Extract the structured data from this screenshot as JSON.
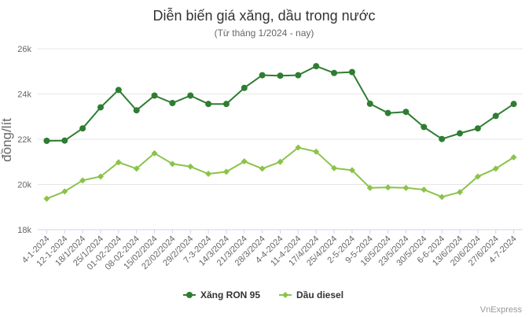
{
  "chart_data": {
    "type": "line",
    "title": "Diễn biến giá xăng, dầu trong nước",
    "subtitle": "(Từ tháng 1/2024 - nay)",
    "ylabel": "đồng/lít",
    "xlabel": "",
    "ylim": [
      18000,
      26000
    ],
    "yticks": [
      {
        "value": 18000,
        "label": "18k"
      },
      {
        "value": 20000,
        "label": "20k"
      },
      {
        "value": 22000,
        "label": "22k"
      },
      {
        "value": 24000,
        "label": "24k"
      },
      {
        "value": 26000,
        "label": "26k"
      }
    ],
    "categories": [
      "4-1-2024",
      "12-1-2024",
      "18/1/2024",
      "25/1/2024",
      "01-02-2024",
      "08-02-2024",
      "15/02/2024",
      "22/02/2024",
      "29/2/2024",
      "7-3-2024",
      "14/3/2024",
      "21/3/2024",
      "28/3/2024",
      "4-4-2024",
      "11-4-2024",
      "17/4/2024",
      "25/4/2024",
      "2-5-2024",
      "9-5-2024",
      "16/5/2024",
      "23/5/2024",
      "30/5/2024",
      "6-6-2024",
      "13/6/2024",
      "20/6/2024",
      "27/6/2024",
      "4-7-2024"
    ],
    "series": [
      {
        "name": "Xăng RON 95",
        "color": "#2e7d32",
        "marker": "circle",
        "values": [
          21930,
          21940,
          22480,
          23410,
          24180,
          23280,
          23930,
          23600,
          23930,
          23560,
          23560,
          24270,
          24830,
          24810,
          24830,
          25230,
          24930,
          24970,
          23570,
          23160,
          23210,
          22540,
          22010,
          22260,
          22480,
          23030,
          23560
        ]
      },
      {
        "name": "Dầu diesel",
        "color": "#8bc34a",
        "marker": "diamond",
        "values": [
          19370,
          19690,
          20180,
          20350,
          20980,
          20700,
          21380,
          20910,
          20790,
          20470,
          20560,
          21020,
          20700,
          21000,
          21630,
          21450,
          20720,
          20630,
          19850,
          19870,
          19850,
          19770,
          19450,
          19660,
          20350,
          20700,
          21200
        ]
      }
    ],
    "legend_position": "bottom",
    "grid": true,
    "credits": "VnExpress"
  }
}
